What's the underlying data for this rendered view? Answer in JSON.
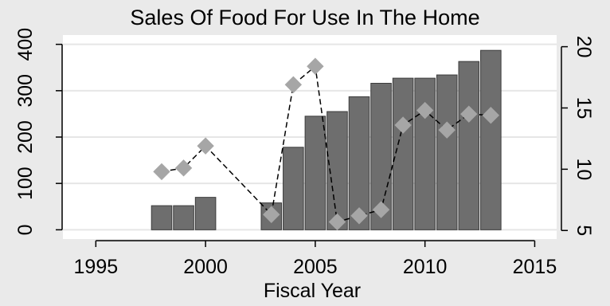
{
  "chart_data": {
    "type": "bar",
    "title": "Sales Of Food For Use In The Home",
    "xlabel": "Fiscal Year",
    "ylabel_left": "",
    "ylabel_right": "",
    "xlim": [
      1993.5,
      2016
    ],
    "ylim_left": [
      -20,
      420
    ],
    "ylim_right": [
      4.3,
      20.95
    ],
    "x_ticks": [
      1995,
      2000,
      2005,
      2010,
      2015
    ],
    "y_left_ticks": [
      0,
      100,
      200,
      300,
      400
    ],
    "y_right_ticks": [
      5,
      10,
      15,
      20
    ],
    "grid": true,
    "legend": "none",
    "colors": {
      "background": "#eaeaea",
      "plot_background": "#ffffff",
      "gridline": "#e6e6e6",
      "bar_fill": "#6e6e6e",
      "bar_stroke": "#3c3c3c",
      "marker": "#a6a6a6",
      "line": "#000000"
    },
    "series": [
      {
        "type": "bar",
        "axis": "left",
        "x": [
          1998,
          1999,
          2000,
          2003,
          2004,
          2005,
          2006,
          2007,
          2008,
          2009,
          2010,
          2011,
          2012,
          2013
        ],
        "values": [
          52,
          52,
          70,
          58,
          178,
          245,
          255,
          287,
          316,
          327,
          327,
          334,
          363,
          387
        ]
      },
      {
        "type": "line",
        "axis": "right",
        "style": "dashed-with-diamond-markers",
        "x": [
          1998,
          1999,
          2000,
          2003,
          2004,
          2005,
          2006,
          2007,
          2008,
          2009,
          2010,
          2011,
          2012,
          2013
        ],
        "values": [
          9.8,
          10.1,
          11.9,
          6.3,
          16.9,
          18.4,
          5.7,
          6.2,
          6.7,
          13.6,
          14.8,
          13.2,
          14.5,
          14.4
        ]
      }
    ]
  }
}
